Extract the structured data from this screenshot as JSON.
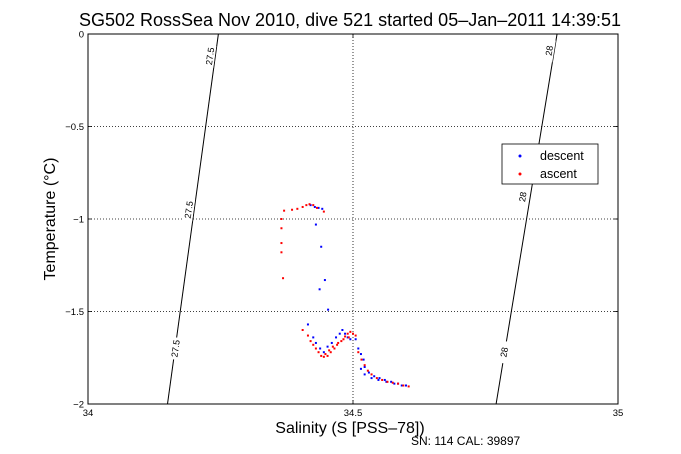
{
  "chart_data": {
    "type": "scatter",
    "title": "SG502 RossSea Nov 2010, dive 521 started 05–Jan–2011 14:39:51",
    "xlabel": "Salinity (S [PSS–78])",
    "ylabel": "Temperature (°C)",
    "xlim": [
      34,
      35
    ],
    "ylim": [
      -2,
      0
    ],
    "x_ticks": [
      "34",
      "34.5",
      "35"
    ],
    "x_tick_values": [
      34,
      34.5,
      35
    ],
    "y_ticks": [
      "0",
      "−0.5",
      "−1",
      "−1.5",
      "−2"
    ],
    "y_tick_values": [
      0,
      -0.5,
      -1,
      -1.5,
      -2
    ],
    "grid": true,
    "legend_position": "right",
    "footer": "SN: 114  CAL: 39897",
    "contours": [
      {
        "label": "27.5",
        "points": [
          [
            34.15,
            -2
          ],
          [
            34.246,
            0
          ]
        ],
        "labels_at": [
          [
            34.165,
            -1.7
          ],
          [
            34.19,
            -0.95
          ],
          [
            34.23,
            -0.12
          ]
        ]
      },
      {
        "label": "28",
        "points": [
          [
            34.77,
            -2
          ],
          [
            34.885,
            0
          ]
        ],
        "labels_at": [
          [
            34.785,
            -1.72
          ],
          [
            34.82,
            -0.88
          ],
          [
            34.87,
            -0.09
          ]
        ]
      }
    ],
    "series": [
      {
        "name": "descent",
        "color": "#0000ff",
        "points": [
          [
            34.42,
            -0.925
          ],
          [
            34.428,
            -0.935
          ],
          [
            34.435,
            -0.94
          ],
          [
            34.442,
            -0.945
          ],
          [
            34.43,
            -1.03
          ],
          [
            34.44,
            -1.15
          ],
          [
            34.447,
            -1.33
          ],
          [
            34.437,
            -1.38
          ],
          [
            34.453,
            -1.49
          ],
          [
            34.415,
            -1.57
          ],
          [
            34.425,
            -1.64
          ],
          [
            34.43,
            -1.67
          ],
          [
            34.438,
            -1.7
          ],
          [
            34.445,
            -1.72
          ],
          [
            34.452,
            -1.69
          ],
          [
            34.46,
            -1.67
          ],
          [
            34.468,
            -1.64
          ],
          [
            34.475,
            -1.62
          ],
          [
            34.48,
            -1.6
          ],
          [
            34.485,
            -1.62
          ],
          [
            34.49,
            -1.64
          ],
          [
            34.495,
            -1.65
          ],
          [
            34.505,
            -1.65
          ],
          [
            34.51,
            -1.7
          ],
          [
            34.515,
            -1.73
          ],
          [
            34.52,
            -1.76
          ],
          [
            34.522,
            -1.8
          ],
          [
            34.53,
            -1.83
          ],
          [
            34.54,
            -1.85
          ],
          [
            34.55,
            -1.86
          ],
          [
            34.56,
            -1.87
          ],
          [
            34.572,
            -1.88
          ],
          [
            34.585,
            -1.89
          ],
          [
            34.6,
            -1.9
          ],
          [
            34.515,
            -1.81
          ],
          [
            34.522,
            -1.84
          ],
          [
            34.535,
            -1.86
          ],
          [
            34.548,
            -1.87
          ],
          [
            34.563,
            -1.88
          ],
          [
            34.578,
            -1.89
          ],
          [
            34.592,
            -1.9
          ]
        ]
      },
      {
        "name": "ascent",
        "color": "#ff0000",
        "points": [
          [
            34.37,
            -0.955
          ],
          [
            34.385,
            -0.95
          ],
          [
            34.395,
            -0.945
          ],
          [
            34.405,
            -0.935
          ],
          [
            34.412,
            -0.925
          ],
          [
            34.418,
            -0.92
          ],
          [
            34.425,
            -0.925
          ],
          [
            34.432,
            -0.94
          ],
          [
            34.445,
            -0.96
          ],
          [
            34.365,
            -1.0
          ],
          [
            34.365,
            -1.05
          ],
          [
            34.365,
            -1.13
          ],
          [
            34.365,
            -1.18
          ],
          [
            34.368,
            -1.32
          ],
          [
            34.405,
            -1.6
          ],
          [
            34.415,
            -1.63
          ],
          [
            34.42,
            -1.66
          ],
          [
            34.425,
            -1.68
          ],
          [
            34.43,
            -1.7
          ],
          [
            34.435,
            -1.72
          ],
          [
            34.44,
            -1.74
          ],
          [
            34.445,
            -1.745
          ],
          [
            34.452,
            -1.74
          ],
          [
            34.458,
            -1.72
          ],
          [
            34.465,
            -1.7
          ],
          [
            34.47,
            -1.68
          ],
          [
            34.478,
            -1.66
          ],
          [
            34.485,
            -1.635
          ],
          [
            34.49,
            -1.62
          ],
          [
            34.495,
            -1.61
          ],
          [
            34.5,
            -1.62
          ],
          [
            34.505,
            -1.63
          ],
          [
            34.51,
            -1.72
          ],
          [
            34.516,
            -1.76
          ],
          [
            34.522,
            -1.79
          ],
          [
            34.528,
            -1.82
          ],
          [
            34.535,
            -1.84
          ],
          [
            34.545,
            -1.86
          ],
          [
            34.555,
            -1.87
          ],
          [
            34.565,
            -1.88
          ],
          [
            34.575,
            -1.885
          ],
          [
            34.585,
            -1.89
          ],
          [
            34.595,
            -1.9
          ],
          [
            34.605,
            -1.905
          ],
          [
            34.448,
            -1.73
          ],
          [
            34.455,
            -1.71
          ],
          [
            34.462,
            -1.69
          ],
          [
            34.472,
            -1.67
          ],
          [
            34.482,
            -1.65
          ],
          [
            34.492,
            -1.64
          ]
        ]
      }
    ]
  }
}
